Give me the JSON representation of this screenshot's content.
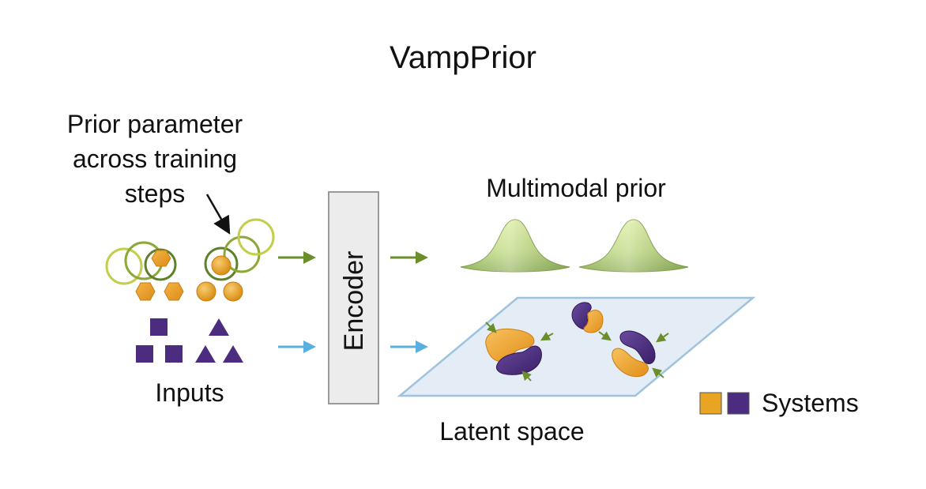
{
  "title": "VampPrior",
  "annotation_lines": [
    "Prior parameter",
    "across training",
    "steps"
  ],
  "inputs_label": "Inputs",
  "encoder_label": "Encoder",
  "prior_label": "Multimodal prior",
  "latent_label": "Latent space",
  "legend_label": "Systems",
  "colors": {
    "system_a": "#e8a423",
    "system_b": "#4b2c7e",
    "prior_arrow": "#6b8e2b",
    "data_arrow": "#5aaee0",
    "plane_fill": "#e4edf5",
    "plane_stroke": "#9ec3dc",
    "encoder_fill": "#ececec",
    "encoder_stroke": "#9a9a9a"
  }
}
